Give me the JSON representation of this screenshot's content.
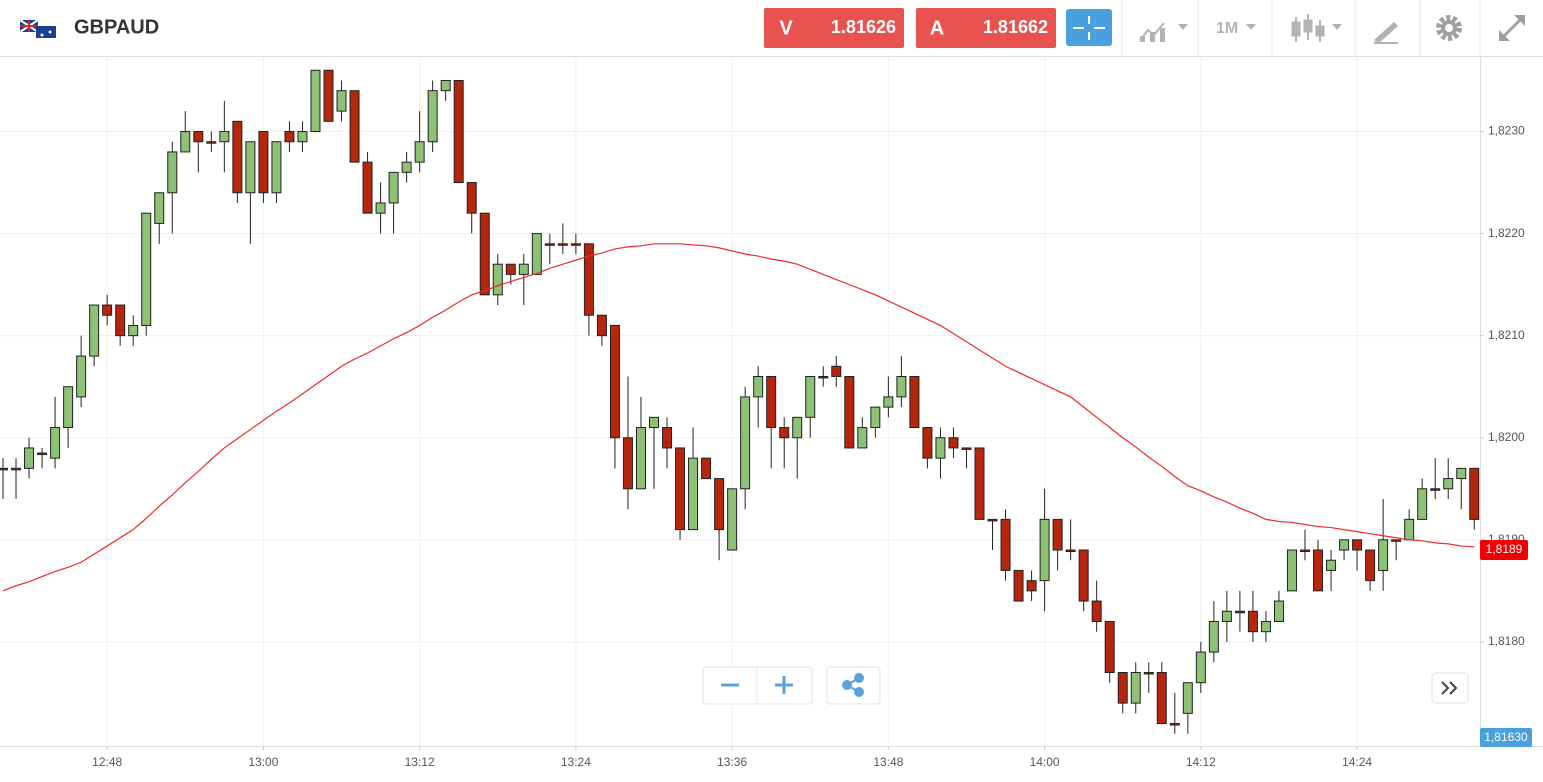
{
  "header": {
    "symbol": "GBPAUD",
    "sell": {
      "label": "V",
      "price": "1.81626"
    },
    "buy": {
      "label": "A",
      "price": "1.81662"
    },
    "timeframe": "1M"
  },
  "chart_data": {
    "type": "candlestick",
    "categories": [
      null,
      null,
      null,
      null,
      null,
      null,
      null,
      null,
      "12:48",
      null,
      null,
      null,
      null,
      null,
      null,
      null,
      null,
      null,
      null,
      null,
      "13:00",
      null,
      null,
      null,
      null,
      null,
      null,
      null,
      null,
      null,
      null,
      null,
      "13:12",
      null,
      null,
      null,
      null,
      null,
      null,
      null,
      null,
      null,
      null,
      null,
      "13:24",
      null,
      null,
      null,
      null,
      null,
      null,
      null,
      null,
      null,
      null,
      null,
      "13:36",
      null,
      null,
      null,
      null,
      null,
      null,
      null,
      null,
      null,
      null,
      null,
      "13:48",
      null,
      null,
      null,
      null,
      null,
      null,
      null,
      null,
      null,
      null,
      null,
      "14:00",
      null,
      null,
      null,
      null,
      null,
      null,
      null,
      null,
      null,
      null,
      null,
      "14:12",
      null,
      null,
      null,
      null,
      null,
      null,
      null,
      null,
      null,
      null,
      null,
      "14:24",
      null,
      null,
      null,
      null,
      null,
      null,
      null,
      null,
      null
    ],
    "open": [
      1.8197,
      1.8197,
      1.8197,
      1.81985,
      1.8198,
      1.8201,
      1.8204,
      1.8208,
      1.8213,
      1.8213,
      1.821,
      1.8211,
      1.8221,
      1.8224,
      1.8228,
      1.823,
      1.8229,
      1.8229,
      1.8231,
      1.8224,
      1.823,
      1.8224,
      1.823,
      1.8229,
      1.823,
      1.8236,
      1.8232,
      1.8234,
      1.8227,
      1.8222,
      1.8223,
      1.8226,
      1.8227,
      1.8229,
      1.8234,
      1.8235,
      1.8225,
      1.8222,
      1.8214,
      1.8217,
      1.8216,
      1.8216,
      1.8219,
      1.8219,
      1.8219,
      1.8219,
      1.8212,
      1.8211,
      1.82,
      1.8195,
      1.8201,
      1.8201,
      1.8199,
      1.8191,
      1.8198,
      1.8196,
      1.8189,
      1.8195,
      1.8204,
      1.8206,
      1.8201,
      1.82,
      1.8202,
      1.8206,
      1.8207,
      1.8206,
      1.8199,
      1.8201,
      1.8203,
      1.8204,
      1.8206,
      1.8201,
      1.8198,
      1.82,
      1.8199,
      1.8199,
      1.8192,
      1.8192,
      1.8187,
      1.8186,
      1.8186,
      1.8192,
      1.8189,
      1.8189,
      1.8184,
      1.8182,
      1.8177,
      1.8174,
      1.8177,
      1.8177,
      1.8172,
      1.8173,
      1.8176,
      1.8179,
      1.8182,
      1.8183,
      1.8183,
      1.8181,
      1.8182,
      1.8185,
      1.8189,
      1.8189,
      1.8187,
      1.8189,
      1.819,
      1.8189,
      1.8187,
      1.819,
      1.819,
      1.8192,
      1.8195,
      1.8195,
      1.8196,
      1.8197
    ],
    "high": [
      1.8198,
      1.8198,
      1.82,
      1.8199,
      1.8204,
      1.8205,
      1.821,
      1.8213,
      1.8214,
      1.8213,
      1.8212,
      1.8222,
      1.8224,
      1.8229,
      1.8232,
      1.823,
      1.823,
      1.8233,
      1.8231,
      1.8229,
      1.823,
      1.8229,
      1.8231,
      1.8231,
      1.8236,
      1.8236,
      1.8235,
      1.8234,
      1.8228,
      1.8225,
      1.8226,
      1.8228,
      1.8232,
      1.8235,
      1.8235,
      1.8235,
      1.8225,
      1.8222,
      1.8218,
      1.8217,
      1.8218,
      1.822,
      1.822,
      1.8221,
      1.822,
      1.8219,
      1.8212,
      1.8211,
      1.8206,
      1.8204,
      1.8202,
      1.8202,
      1.8199,
      1.8201,
      1.8198,
      1.8196,
      1.8195,
      1.8205,
      1.8207,
      1.8206,
      1.8202,
      1.8202,
      1.8206,
      1.8207,
      1.8208,
      1.8206,
      1.8202,
      1.8203,
      1.8206,
      1.8208,
      1.8206,
      1.8201,
      1.8201,
      1.8201,
      1.8199,
      1.8199,
      1.8192,
      1.8193,
      1.8187,
      1.8187,
      1.8195,
      1.8192,
      1.8192,
      1.8189,
      1.8186,
      1.8182,
      1.8177,
      1.8178,
      1.8178,
      1.8178,
      1.8175,
      1.8176,
      1.818,
      1.8184,
      1.8185,
      1.8185,
      1.8185,
      1.8183,
      1.8185,
      1.8189,
      1.8191,
      1.819,
      1.8189,
      1.819,
      1.819,
      1.8189,
      1.8194,
      1.819,
      1.8193,
      1.8196,
      1.8198,
      1.8198,
      1.8197,
      1.8197
    ],
    "low": [
      1.8194,
      1.8194,
      1.8196,
      1.8197,
      1.8197,
      1.8199,
      1.8203,
      1.8207,
      1.8211,
      1.8209,
      1.8209,
      1.821,
      1.8219,
      1.822,
      1.8228,
      1.8226,
      1.8228,
      1.8226,
      1.8223,
      1.8219,
      1.8223,
      1.8223,
      1.8228,
      1.8228,
      1.823,
      1.8231,
      1.8231,
      1.8227,
      1.8222,
      1.822,
      1.822,
      1.8225,
      1.8226,
      1.8228,
      1.8233,
      1.8225,
      1.822,
      1.8214,
      1.8213,
      1.8215,
      1.8213,
      1.8216,
      1.8217,
      1.8218,
      1.8218,
      1.821,
      1.8209,
      1.8197,
      1.8193,
      1.8195,
      1.8195,
      1.8197,
      1.819,
      1.8191,
      1.8196,
      1.8188,
      1.8189,
      1.8193,
      1.8201,
      1.8197,
      1.8197,
      1.8196,
      1.82,
      1.8205,
      1.8205,
      1.8199,
      1.8199,
      1.82,
      1.8202,
      1.8203,
      1.8201,
      1.8197,
      1.8196,
      1.8198,
      1.8197,
      1.8192,
      1.8189,
      1.8186,
      1.8184,
      1.8184,
      1.8183,
      1.8187,
      1.8188,
      1.8183,
      1.8181,
      1.8176,
      1.8173,
      1.8173,
      1.8175,
      1.8172,
      1.8171,
      1.8171,
      1.8175,
      1.8178,
      1.818,
      1.8181,
      1.818,
      1.818,
      1.8182,
      1.8185,
      1.8188,
      1.8185,
      1.8185,
      1.8188,
      1.8187,
      1.8185,
      1.8185,
      1.8188,
      1.819,
      1.8192,
      1.8194,
      1.8194,
      1.8193,
      1.8191
    ],
    "close": [
      1.8197,
      1.8197,
      1.8199,
      1.81985,
      1.8201,
      1.8205,
      1.8208,
      1.8213,
      1.8212,
      1.821,
      1.8211,
      1.8222,
      1.8224,
      1.8228,
      1.823,
      1.8229,
      1.8229,
      1.823,
      1.8224,
      1.8229,
      1.8224,
      1.8229,
      1.8229,
      1.823,
      1.8236,
      1.8231,
      1.8234,
      1.8227,
      1.8222,
      1.8223,
      1.8226,
      1.8227,
      1.8229,
      1.8234,
      1.8235,
      1.8225,
      1.8222,
      1.8214,
      1.8217,
      1.8216,
      1.8217,
      1.822,
      1.8219,
      1.8219,
      1.8219,
      1.8212,
      1.821,
      1.82,
      1.8195,
      1.8201,
      1.8202,
      1.8199,
      1.8191,
      1.8198,
      1.8196,
      1.8191,
      1.8195,
      1.8204,
      1.8206,
      1.8201,
      1.82,
      1.8202,
      1.8206,
      1.8206,
      1.8206,
      1.8199,
      1.8201,
      1.8203,
      1.8204,
      1.8206,
      1.8201,
      1.8198,
      1.82,
      1.8199,
      1.8199,
      1.8192,
      1.8192,
      1.8187,
      1.8184,
      1.8185,
      1.8192,
      1.8189,
      1.8189,
      1.8184,
      1.8182,
      1.8177,
      1.8174,
      1.8177,
      1.8177,
      1.8172,
      1.8172,
      1.8176,
      1.8179,
      1.8182,
      1.8183,
      1.8183,
      1.8181,
      1.8182,
      1.8184,
      1.8189,
      1.8189,
      1.8185,
      1.8188,
      1.819,
      1.8189,
      1.8186,
      1.819,
      1.819,
      1.8192,
      1.8195,
      1.8195,
      1.8196,
      1.8197,
      1.8192
    ],
    "moving_average": [
      1.8185,
      1.81855,
      1.81859,
      1.81864,
      1.81869,
      1.81873,
      1.81878,
      1.81886,
      1.81894,
      1.81902,
      1.8191,
      1.81921,
      1.81933,
      1.81944,
      1.81956,
      1.81967,
      1.81979,
      1.8199,
      1.81999,
      1.82008,
      1.82017,
      1.82026,
      1.82034,
      1.82043,
      1.82052,
      1.82061,
      1.8207,
      1.82077,
      1.82083,
      1.8209,
      1.82097,
      1.82103,
      1.8211,
      1.82118,
      1.82125,
      1.82133,
      1.8214,
      1.82144,
      1.82149,
      1.82153,
      1.82157,
      1.82161,
      1.82166,
      1.8217,
      1.82174,
      1.82178,
      1.82181,
      1.82185,
      1.82187,
      1.82188,
      1.8219,
      1.8219,
      1.8219,
      1.82189,
      1.82188,
      1.82186,
      1.82183,
      1.8218,
      1.82178,
      1.82175,
      1.82173,
      1.8217,
      1.82165,
      1.8216,
      1.82155,
      1.8215,
      1.82145,
      1.8214,
      1.82134,
      1.82128,
      1.82122,
      1.82116,
      1.8211,
      1.82102,
      1.82094,
      1.82086,
      1.82078,
      1.8207,
      1.82064,
      1.82058,
      1.82052,
      1.82046,
      1.8204,
      1.8203,
      1.8202,
      1.8201,
      1.82,
      1.81991,
      1.81981,
      1.81972,
      1.81962,
      1.81953,
      1.81948,
      1.81942,
      1.81937,
      1.81931,
      1.81926,
      1.8192,
      1.81918,
      1.81917,
      1.81915,
      1.81913,
      1.81912,
      1.8191,
      1.81908,
      1.81906,
      1.81904,
      1.81902,
      1.819,
      1.81899,
      1.81897,
      1.81896,
      1.81894,
      1.81893
    ],
    "up_color": "#8cc176",
    "down_color": "#b5260c",
    "ma_color": "#ee2b2b",
    "ylim": [
      1.81698,
      1.82373
    ],
    "yticks": [
      {
        "value": 1.818,
        "label": "1,8180"
      },
      {
        "value": 1.819,
        "label": "1,8190"
      },
      {
        "value": 1.82,
        "label": "1,8200"
      },
      {
        "value": 1.821,
        "label": "1,8210"
      },
      {
        "value": 1.822,
        "label": "1,8220"
      },
      {
        "value": 1.823,
        "label": "1,8230"
      }
    ],
    "last_value_tag": {
      "value": 1.8189,
      "label": "1,8189"
    },
    "bid_tag": "1,81630",
    "grid": true
  }
}
